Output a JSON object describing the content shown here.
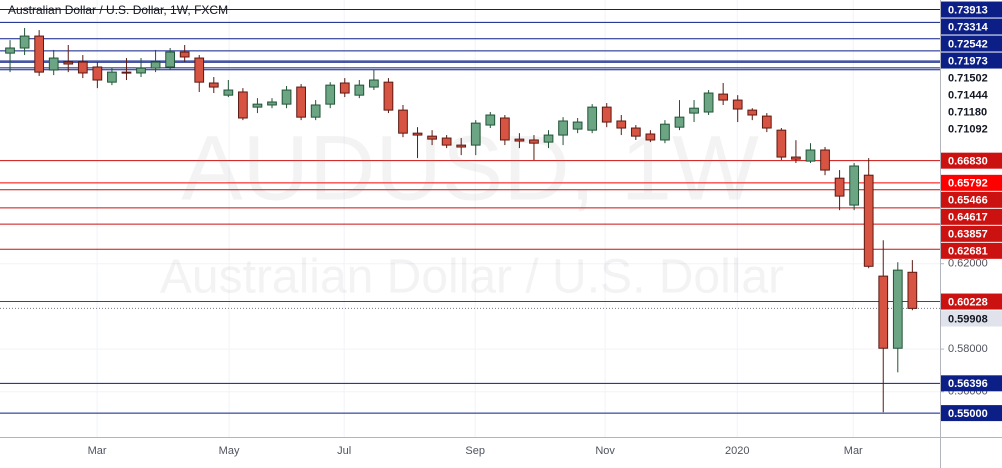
{
  "chart_data": {
    "type": "candlestick",
    "title": "Australian Dollar / U.S. Dollar, 1W, FXCM",
    "watermark": "AUDUSD, 1W",
    "watermark_subtitle": "Australian Dollar / U.S. Dollar",
    "up_color": "#6ba583",
    "up_border": "#225437",
    "down_color": "#d75442",
    "down_border": "#5b1a13",
    "grid": true,
    "xlim": [
      -0.69,
      63.9
    ],
    "xticks": [
      {
        "value": 5.98,
        "label": "Mar"
      },
      {
        "value": 15.05,
        "label": "May"
      },
      {
        "value": 22.96,
        "label": "Jul"
      },
      {
        "value": 31.96,
        "label": "Sep"
      },
      {
        "value": 40.89,
        "label": "Nov"
      },
      {
        "value": 49.97,
        "label": "2020"
      },
      {
        "value": 57.94,
        "label": "Mar"
      }
    ],
    "ylim": [
      0.5388,
      0.7436
    ],
    "yticks": [
      {
        "value": 0.56,
        "label": "0.56000"
      },
      {
        "value": 0.58,
        "label": "0.58000"
      },
      {
        "value": 0.62,
        "label": "0.62000"
      }
    ],
    "open": [
      0.7187,
      0.7211,
      0.7267,
      0.7108,
      0.7145,
      0.7145,
      0.7122,
      0.7051,
      0.7098,
      0.7094,
      0.7117,
      0.7122,
      0.7192,
      0.7164,
      0.7047,
      0.699,
      0.7005,
      0.6934,
      0.6944,
      0.6948,
      0.7028,
      0.6887,
      0.6948,
      0.7047,
      0.699,
      0.7028,
      0.7051,
      0.692,
      0.6812,
      0.6798,
      0.6789,
      0.6756,
      0.6756,
      0.685,
      0.6883,
      0.6784,
      0.678,
      0.677,
      0.6803,
      0.6831,
      0.6826,
      0.6934,
      0.6869,
      0.6836,
      0.6808,
      0.678,
      0.684,
      0.6906,
      0.6911,
      0.6995,
      0.6967,
      0.692,
      0.6892,
      0.6826,
      0.67,
      0.6681,
      0.6733,
      0.6601,
      0.6475,
      0.6615,
      0.6142,
      0.5804,
      0.616
    ],
    "high": [
      0.7248,
      0.7305,
      0.7295,
      0.7202,
      0.7225,
      0.7178,
      0.7145,
      0.7117,
      0.7164,
      0.7164,
      0.7202,
      0.7211,
      0.7225,
      0.7178,
      0.7075,
      0.7061,
      0.7023,
      0.6976,
      0.6976,
      0.7033,
      0.7042,
      0.6967,
      0.7051,
      0.707,
      0.7061,
      0.7108,
      0.707,
      0.6944,
      0.684,
      0.6826,
      0.6803,
      0.6789,
      0.6873,
      0.6911,
      0.6897,
      0.6812,
      0.6803,
      0.6826,
      0.6887,
      0.6883,
      0.6948,
      0.6953,
      0.6897,
      0.685,
      0.6826,
      0.6873,
      0.6967,
      0.6967,
      0.7014,
      0.7047,
      0.699,
      0.6929,
      0.6906,
      0.6836,
      0.6779,
      0.6765,
      0.6747,
      0.6639,
      0.6672,
      0.6695,
      0.631,
      0.6207,
      0.6217
    ],
    "low": [
      0.7098,
      0.7178,
      0.708,
      0.7084,
      0.7098,
      0.707,
      0.7023,
      0.7037,
      0.7061,
      0.7075,
      0.7098,
      0.7108,
      0.7145,
      0.7005,
      0.7,
      0.6981,
      0.6873,
      0.6906,
      0.6929,
      0.6929,
      0.6873,
      0.6873,
      0.6929,
      0.6981,
      0.6976,
      0.7014,
      0.6906,
      0.6793,
      0.6695,
      0.6756,
      0.6742,
      0.6709,
      0.6709,
      0.6836,
      0.6756,
      0.6742,
      0.6686,
      0.6742,
      0.6756,
      0.6812,
      0.6812,
      0.684,
      0.6803,
      0.678,
      0.677,
      0.6765,
      0.6826,
      0.6864,
      0.6897,
      0.6944,
      0.6864,
      0.6873,
      0.6817,
      0.6686,
      0.6672,
      0.6672,
      0.6615,
      0.6451,
      0.6451,
      0.6179,
      0.5504,
      0.5691,
      0.5982
    ],
    "close": [
      0.7211,
      0.7267,
      0.7098,
      0.7164,
      0.7136,
      0.7094,
      0.7061,
      0.7098,
      0.7094,
      0.7117,
      0.7145,
      0.7192,
      0.7169,
      0.7051,
      0.7028,
      0.7014,
      0.6883,
      0.6948,
      0.6958,
      0.7014,
      0.6887,
      0.6944,
      0.7037,
      0.7,
      0.7037,
      0.7061,
      0.692,
      0.6812,
      0.6803,
      0.6784,
      0.6756,
      0.6747,
      0.6859,
      0.6897,
      0.678,
      0.6775,
      0.6765,
      0.6803,
      0.6869,
      0.6864,
      0.6934,
      0.6864,
      0.6836,
      0.6798,
      0.678,
      0.6854,
      0.6887,
      0.6929,
      0.7,
      0.6967,
      0.6925,
      0.6897,
      0.6836,
      0.67,
      0.669,
      0.6733,
      0.6639,
      0.6517,
      0.6658,
      0.6188,
      0.5804,
      0.617,
      0.59908
    ],
    "last_price": 0.59908,
    "levels": [
      {
        "value": 0.73913,
        "label": "0.73913",
        "color": "#0c1f86",
        "filled": true
      },
      {
        "value": 0.73314,
        "label": "0.73314",
        "color": "#0c1f86",
        "filled": true
      },
      {
        "value": 0.72542,
        "label": "0.72542",
        "color": "#0c1f86",
        "filled": true
      },
      {
        "value": 0.71973,
        "label": "0.71973",
        "color": "#0c1f86",
        "filled": true
      },
      {
        "value": 0.71502,
        "label": "0.71502",
        "color": "#0c1f86",
        "filled": false
      },
      {
        "value": 0.71444,
        "label": "0.71444",
        "color": "#0c1f86",
        "filled": false
      },
      {
        "value": 0.7118,
        "label": "0.71180",
        "color": "#0c1f86",
        "filled": false
      },
      {
        "value": 0.71092,
        "label": "0.71092",
        "color": "#0c1f86",
        "filled": false
      },
      {
        "value": 0.6683,
        "label": "0.66830",
        "color": "#cc1111",
        "filled": true
      },
      {
        "value": 0.65792,
        "label": "0.65792",
        "color": "#ff0000",
        "filled": true
      },
      {
        "value": 0.65466,
        "label": "0.65466",
        "color": "#cc1111",
        "filled": true
      },
      {
        "value": 0.64617,
        "label": "0.64617",
        "color": "#cc1111",
        "filled": true
      },
      {
        "value": 0.63857,
        "label": "0.63857",
        "color": "#cc1111",
        "filled": true
      },
      {
        "value": 0.62681,
        "label": "0.62681",
        "color": "#cc1111",
        "filled": true
      },
      {
        "value": 0.60228,
        "label": "0.60228",
        "color": "#cc1111",
        "filled": true
      },
      {
        "value": 0.56396,
        "label": "0.56396",
        "color": "#0c1f86",
        "filled": true
      },
      {
        "value": 0.55,
        "label": "0.55000",
        "color": "#0c1f86",
        "filled": true
      }
    ]
  }
}
